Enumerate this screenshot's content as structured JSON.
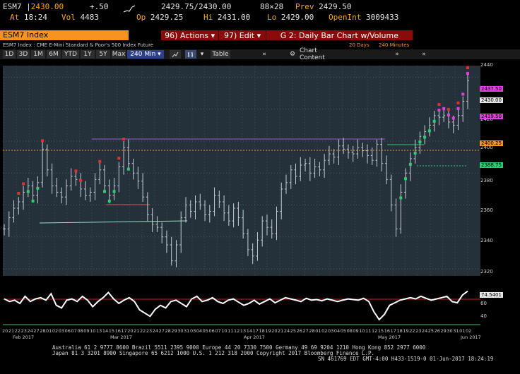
{
  "quote": {
    "ticker": "ESM7",
    "last": "2430.00",
    "change": "+.50",
    "bid_ask": "2429.75/2430.00",
    "size": "88×28",
    "prev_label": "Prev",
    "prev": "2429.50",
    "at_label": "At",
    "time": "18:24",
    "vol_label": "Vol",
    "vol": "4483",
    "op_label": "Op",
    "open": "2429.25",
    "hi_label": "Hi",
    "high": "2431.00",
    "lo_label": "Lo",
    "low": "2429.00",
    "oi_label": "OpenInt",
    "open_int": "3009433"
  },
  "security_field": "ESM7 Index",
  "menu": {
    "actions": "96) Actions ▾",
    "edit": "97) Edit ▾",
    "chart_title": "G 2: Daily Bar Chart w/Volume"
  },
  "subtitle": {
    "description": "ESM7 Index : CME E-Mini Standard & Poor's 500 Index Future",
    "days": "20 Days",
    "interval": "240 Minutes"
  },
  "toolbar": {
    "ranges": [
      "1D",
      "3D",
      "1M",
      "6M",
      "YTD",
      "1Y",
      "5Y",
      "Max"
    ],
    "interval": "240 Min ▾",
    "table": "Table",
    "chart_content": "Chart Content"
  },
  "chart_data": {
    "type": "ohlc",
    "y_ticks": [
      "2440",
      "2420",
      "2400",
      "2380",
      "2360",
      "2340",
      "2320"
    ],
    "ylim": [
      2316,
      2446
    ],
    "price_tags": [
      "2437.50",
      "2430.00",
      "2419.50",
      "2400.25",
      "2388.75"
    ],
    "indicator_ticks": [
      "60",
      "40"
    ],
    "indicator_tag": "74.5401",
    "indicator_ylim": [
      20,
      90
    ],
    "x_labels": [
      "20",
      "21",
      "22",
      "23",
      "24",
      "27",
      "28",
      "01",
      "02",
      "03",
      "06",
      "07",
      "08",
      "09",
      "10",
      "13",
      "14",
      "15",
      "16",
      "17",
      "20",
      "21",
      "22",
      "23",
      "24",
      "27",
      "28",
      "29",
      "30",
      "31",
      "03",
      "04",
      "05",
      "06",
      "07",
      "10",
      "11",
      "12",
      "13",
      "14",
      "17",
      "18",
      "19",
      "20",
      "21",
      "24",
      "25",
      "26",
      "27",
      "28",
      "01",
      "02",
      "03",
      "04",
      "05",
      "08",
      "09",
      "10",
      "11",
      "12",
      "15",
      "16",
      "17",
      "18",
      "19",
      "22",
      "23",
      "24",
      "25",
      "26",
      "29",
      "30",
      "31",
      "01",
      "02"
    ],
    "month_labels": [
      "Feb 2017",
      "Mar 2017",
      "Apr 2017",
      "May 2017",
      "Jun 2017"
    ],
    "price_series": [
      2345,
      2352,
      2358,
      2362,
      2368,
      2372,
      2366,
      2374,
      2395,
      2382,
      2372,
      2368,
      2365,
      2372,
      2378,
      2376,
      2370,
      2366,
      2368,
      2376,
      2382,
      2372,
      2366,
      2372,
      2384,
      2396,
      2386,
      2380,
      2375,
      2365,
      2354,
      2348,
      2346,
      2340,
      2335,
      2325,
      2335,
      2352,
      2360,
      2356,
      2362,
      2360,
      2354,
      2356,
      2366,
      2362,
      2355,
      2350,
      2358,
      2352,
      2342,
      2332,
      2328,
      2338,
      2350,
      2346,
      2342,
      2356,
      2370,
      2374,
      2382,
      2378,
      2385,
      2386,
      2380,
      2384,
      2382,
      2388,
      2392,
      2390,
      2397,
      2395,
      2393,
      2392,
      2396,
      2394,
      2391,
      2388,
      2398,
      2386,
      2376,
      2360,
      2345,
      2368,
      2380,
      2389,
      2396,
      2403,
      2406,
      2410,
      2416,
      2415,
      2416,
      2412,
      2410,
      2416,
      2425,
      2438
    ],
    "indicator_series": [
      62,
      58,
      60,
      55,
      66,
      58,
      62,
      64,
      60,
      70,
      52,
      48,
      60,
      62,
      58,
      66,
      60,
      50,
      58,
      64,
      72,
      62,
      55,
      60,
      64,
      58,
      45,
      40,
      35,
      46,
      52,
      48,
      58,
      60,
      55,
      50,
      62,
      66,
      58,
      60,
      64,
      58,
      55,
      60,
      62,
      57,
      52,
      55,
      60,
      54,
      58,
      62,
      56,
      60,
      64,
      62,
      60,
      58,
      63,
      60,
      61,
      59,
      62,
      60,
      58,
      60,
      62,
      61,
      60,
      63,
      58,
      42,
      30,
      38,
      52,
      56,
      60,
      62,
      64,
      62,
      66,
      63,
      60,
      62,
      64,
      66,
      58,
      56,
      68,
      74
    ]
  },
  "footer": {
    "line1": "Australia 61 2 9777 8600 Brazil 5511 2395 9000 Europe 44 20 7330 7500 Germany 49 69 9204 1210 Hong Kong 852 2977 6000",
    "line2": "Japan 81 3 3201 8900        Singapore 65 6212 1000        U.S. 1 212 318 2000        Copyright 2017 Bloomberg Finance L.P.",
    "line3": "SN 461769 EDT  GMT-4:00 H433-1519-0 01-Jun-2017 18:24:19"
  },
  "colors": {
    "chart_bg": "#24313a",
    "price": "#c8ccd4",
    "hline_orange": "#f7931e",
    "accent_red": "#8b0b0b",
    "indicator": "#ffffff",
    "indicator_ref": "#cc2222"
  }
}
